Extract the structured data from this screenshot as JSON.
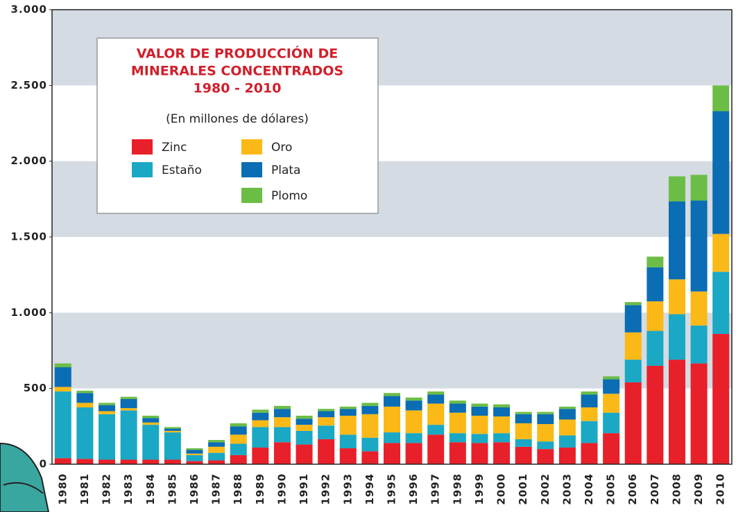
{
  "chart_data": {
    "type": "stacked_bar",
    "title": [
      "VALOR DE PRODUCCIÓN DE",
      "MINERALES CONCENTRADOS",
      "1980 - 2010"
    ],
    "subtitle": "(En millones de dólares)",
    "categories": [
      "1980",
      "1981",
      "1982",
      "1983",
      "1984",
      "1985",
      "1986",
      "1987",
      "1988",
      "1989",
      "1990",
      "1991",
      "1992",
      "1993",
      "1994",
      "1995",
      "1996",
      "1997",
      "1998",
      "1999",
      "2000",
      "2001",
      "2002",
      "2003",
      "2004",
      "2005",
      "2006",
      "2007",
      "2008",
      "2009",
      "2010"
    ],
    "series": [
      {
        "name": "Zinc",
        "color": "#e8202a",
        "values": [
          40,
          35,
          30,
          30,
          30,
          30,
          20,
          25,
          60,
          110,
          145,
          130,
          165,
          105,
          85,
          140,
          140,
          195,
          145,
          140,
          145,
          115,
          100,
          110,
          140,
          205,
          540,
          650,
          690,
          665,
          860
        ]
      },
      {
        "name": "Estaño",
        "color": "#1aa8c4",
        "values": [
          440,
          340,
          300,
          325,
          230,
          180,
          40,
          50,
          75,
          135,
          100,
          90,
          90,
          90,
          90,
          70,
          65,
          65,
          60,
          60,
          60,
          50,
          50,
          80,
          145,
          135,
          150,
          230,
          300,
          250,
          410
        ]
      },
      {
        "name": "Oro",
        "color": "#fbb917",
        "values": [
          30,
          30,
          20,
          15,
          15,
          10,
          10,
          40,
          60,
          45,
          65,
          40,
          55,
          125,
          155,
          170,
          150,
          140,
          135,
          120,
          110,
          105,
          115,
          105,
          90,
          125,
          180,
          195,
          230,
          225,
          250
        ]
      },
      {
        "name": "Plata",
        "color": "#0b6db3",
        "values": [
          130,
          65,
          40,
          60,
          30,
          15,
          25,
          30,
          55,
          50,
          55,
          40,
          40,
          45,
          55,
          70,
          65,
          60,
          60,
          60,
          60,
          60,
          65,
          70,
          85,
          95,
          180,
          225,
          515,
          600,
          810
        ]
      },
      {
        "name": "Plomo",
        "color": "#6cbd45",
        "values": [
          25,
          15,
          15,
          15,
          15,
          10,
          10,
          15,
          20,
          20,
          20,
          20,
          15,
          15,
          20,
          20,
          20,
          20,
          20,
          20,
          20,
          15,
          15,
          15,
          20,
          20,
          20,
          70,
          165,
          170,
          170
        ]
      }
    ],
    "ylim": [
      0,
      3000
    ],
    "yticks": [
      0,
      {
        "value": 500,
        "label": "500"
      },
      {
        "value": 1000,
        "label": "1.000"
      },
      {
        "value": 1500,
        "label": "1.500"
      },
      {
        "value": 2000,
        "label": "2.000"
      },
      {
        "value": 2500,
        "label": "2.500"
      },
      {
        "value": 3000,
        "label": "3.000"
      }
    ],
    "grid": "bands"
  }
}
